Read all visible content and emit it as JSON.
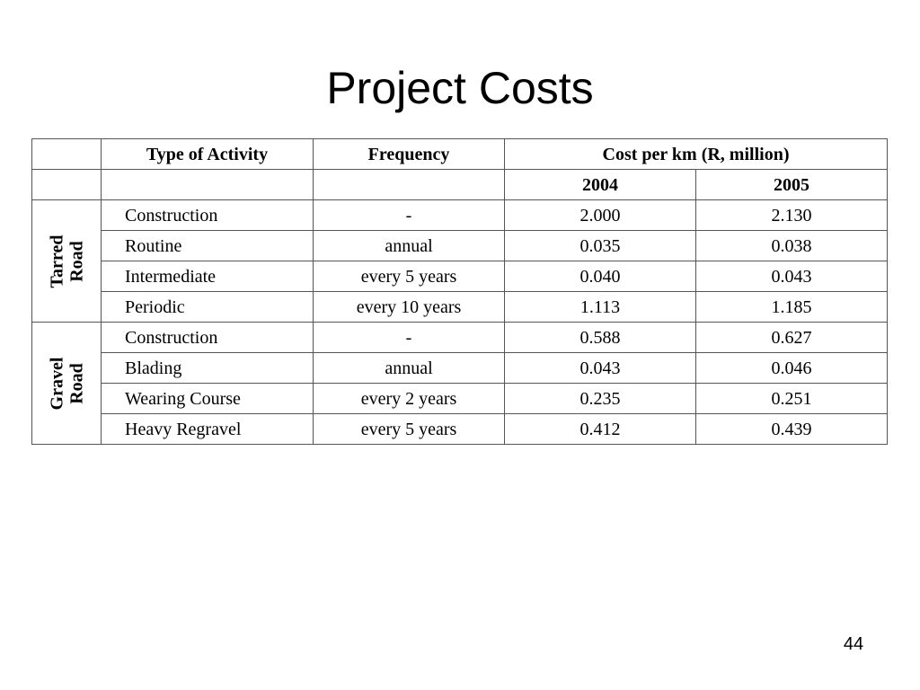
{
  "title": "Project Costs",
  "page_number": "44",
  "table": {
    "headers": {
      "activity": "Type of Activity",
      "frequency": "Frequency",
      "cost": "Cost per km (R, million)",
      "year1": "2004",
      "year2": "2005"
    },
    "groups": [
      {
        "label_line1": "Tarred",
        "label_line2": "Road",
        "rows": [
          {
            "activity": "Construction",
            "frequency": "-",
            "y2004": "2.000",
            "y2005": "2.130"
          },
          {
            "activity": "Routine",
            "frequency": "annual",
            "y2004": "0.035",
            "y2005": "0.038"
          },
          {
            "activity": "Intermediate",
            "frequency": "every 5 years",
            "y2004": "0.040",
            "y2005": "0.043"
          },
          {
            "activity": "Periodic",
            "frequency": "every 10 years",
            "y2004": "1.113",
            "y2005": "1.185"
          }
        ]
      },
      {
        "label_line1": "Gravel",
        "label_line2": "Road",
        "rows": [
          {
            "activity": "Construction",
            "frequency": "-",
            "y2004": "0.588",
            "y2005": "0.627"
          },
          {
            "activity": "Blading",
            "frequency": "annual",
            "y2004": "0.043",
            "y2005": "0.046"
          },
          {
            "activity": "Wearing Course",
            "frequency": "every 2 years",
            "y2004": "0.235",
            "y2005": "0.251"
          },
          {
            "activity": "Heavy Regravel",
            "frequency": "every 5 years",
            "y2004": "0.412",
            "y2005": "0.439"
          }
        ]
      }
    ]
  }
}
